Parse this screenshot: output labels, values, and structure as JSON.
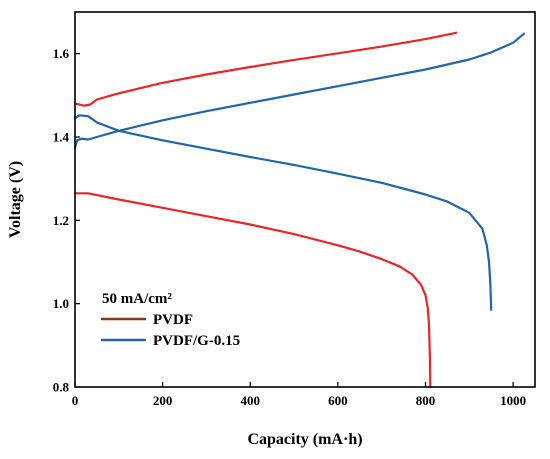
{
  "chart_data": {
    "type": "line",
    "xlabel": "Capacity (mA·h)",
    "ylabel": "Voltage (V)",
    "xlim": [
      0,
      1050
    ],
    "ylim": [
      0.8,
      1.7
    ],
    "xticks": [
      0,
      200,
      400,
      600,
      800,
      1000
    ],
    "yticks": [
      0.8,
      1.0,
      1.2,
      1.4,
      1.6
    ],
    "ytick_labels": [
      "0.8",
      "1.0",
      "1.2",
      "1.4",
      "1.6"
    ],
    "grid": false,
    "legend": {
      "placement": "bottom-left",
      "title": "50 mA/cm²",
      "entries": [
        {
          "name": "PVDF",
          "color": "#8B3A10"
        },
        {
          "name": "PVDF/G-0.15",
          "color": "#2266AA"
        }
      ]
    },
    "series": [
      {
        "name": "PVDF",
        "legend_color": "#8B3A10",
        "color": "#E8262A",
        "curves": [
          {
            "role": "charge",
            "x": [
              0,
              10,
              20,
              35,
              50,
              100,
              200,
              300,
              400,
              500,
              600,
              700,
              800,
              870
            ],
            "y": [
              1.48,
              1.478,
              1.475,
              1.478,
              1.49,
              1.505,
              1.53,
              1.55,
              1.568,
              1.585,
              1.601,
              1.617,
              1.635,
              1.65
            ]
          },
          {
            "role": "discharge",
            "x": [
              0,
              30,
              100,
              200,
              300,
              400,
              500,
              600,
              650,
              700,
              740,
              770,
              790,
              800,
              805,
              808,
              810,
              811
            ],
            "y": [
              1.265,
              1.265,
              1.25,
              1.23,
              1.21,
              1.19,
              1.167,
              1.14,
              1.125,
              1.107,
              1.09,
              1.07,
              1.045,
              1.02,
              0.99,
              0.95,
              0.87,
              0.8
            ]
          }
        ]
      },
      {
        "name": "PVDF/G-0.15",
        "color": "#2266AA",
        "curves": [
          {
            "role": "charge",
            "x": [
              0,
              5,
              15,
              30,
              50,
              100,
              200,
              300,
              400,
              500,
              600,
              700,
              800,
              900,
              950,
              1000,
              1025
            ],
            "y": [
              1.375,
              1.392,
              1.396,
              1.394,
              1.4,
              1.415,
              1.44,
              1.462,
              1.482,
              1.502,
              1.522,
              1.542,
              1.562,
              1.586,
              1.603,
              1.626,
              1.648
            ]
          },
          {
            "role": "discharge",
            "x": [
              0,
              10,
              30,
              50,
              100,
              200,
              300,
              400,
              500,
              600,
              700,
              800,
              850,
              900,
              930,
              940,
              945,
              948,
              950
            ],
            "y": [
              1.445,
              1.452,
              1.45,
              1.435,
              1.415,
              1.392,
              1.372,
              1.352,
              1.333,
              1.312,
              1.29,
              1.262,
              1.245,
              1.218,
              1.18,
              1.14,
              1.1,
              1.05,
              0.985
            ]
          }
        ]
      }
    ]
  }
}
